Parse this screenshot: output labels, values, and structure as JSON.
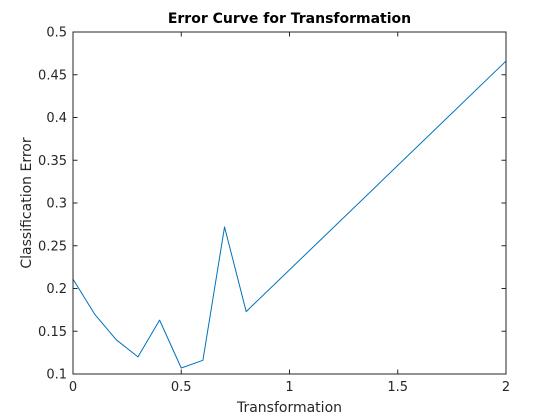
{
  "chart_data": {
    "type": "line",
    "title": "Error Curve for Transformation",
    "xlabel": "Transformation",
    "ylabel": "Classification Error",
    "xlim": [
      0,
      2
    ],
    "ylim": [
      0.1,
      0.5
    ],
    "x_ticks": [
      0,
      0.5,
      1,
      1.5,
      2
    ],
    "x_tick_labels": [
      "0",
      "0.5",
      "1",
      "1.5",
      "2"
    ],
    "y_ticks": [
      0.1,
      0.15,
      0.2,
      0.25,
      0.3,
      0.35,
      0.4,
      0.45,
      0.5
    ],
    "y_tick_labels": [
      "0.1",
      "0.15",
      "0.2",
      "0.25",
      "0.3",
      "0.35",
      "0.4",
      "0.45",
      "0.5"
    ],
    "grid": false,
    "legend": "none",
    "series": [
      {
        "color": "#0072bd",
        "x": [
          0,
          0.1,
          0.2,
          0.3,
          0.4,
          0.5,
          0.6,
          0.7,
          0.8,
          2
        ],
        "y": [
          0.211,
          0.17,
          0.14,
          0.12,
          0.163,
          0.107,
          0.116,
          0.272,
          0.173,
          0.466
        ]
      }
    ]
  }
}
